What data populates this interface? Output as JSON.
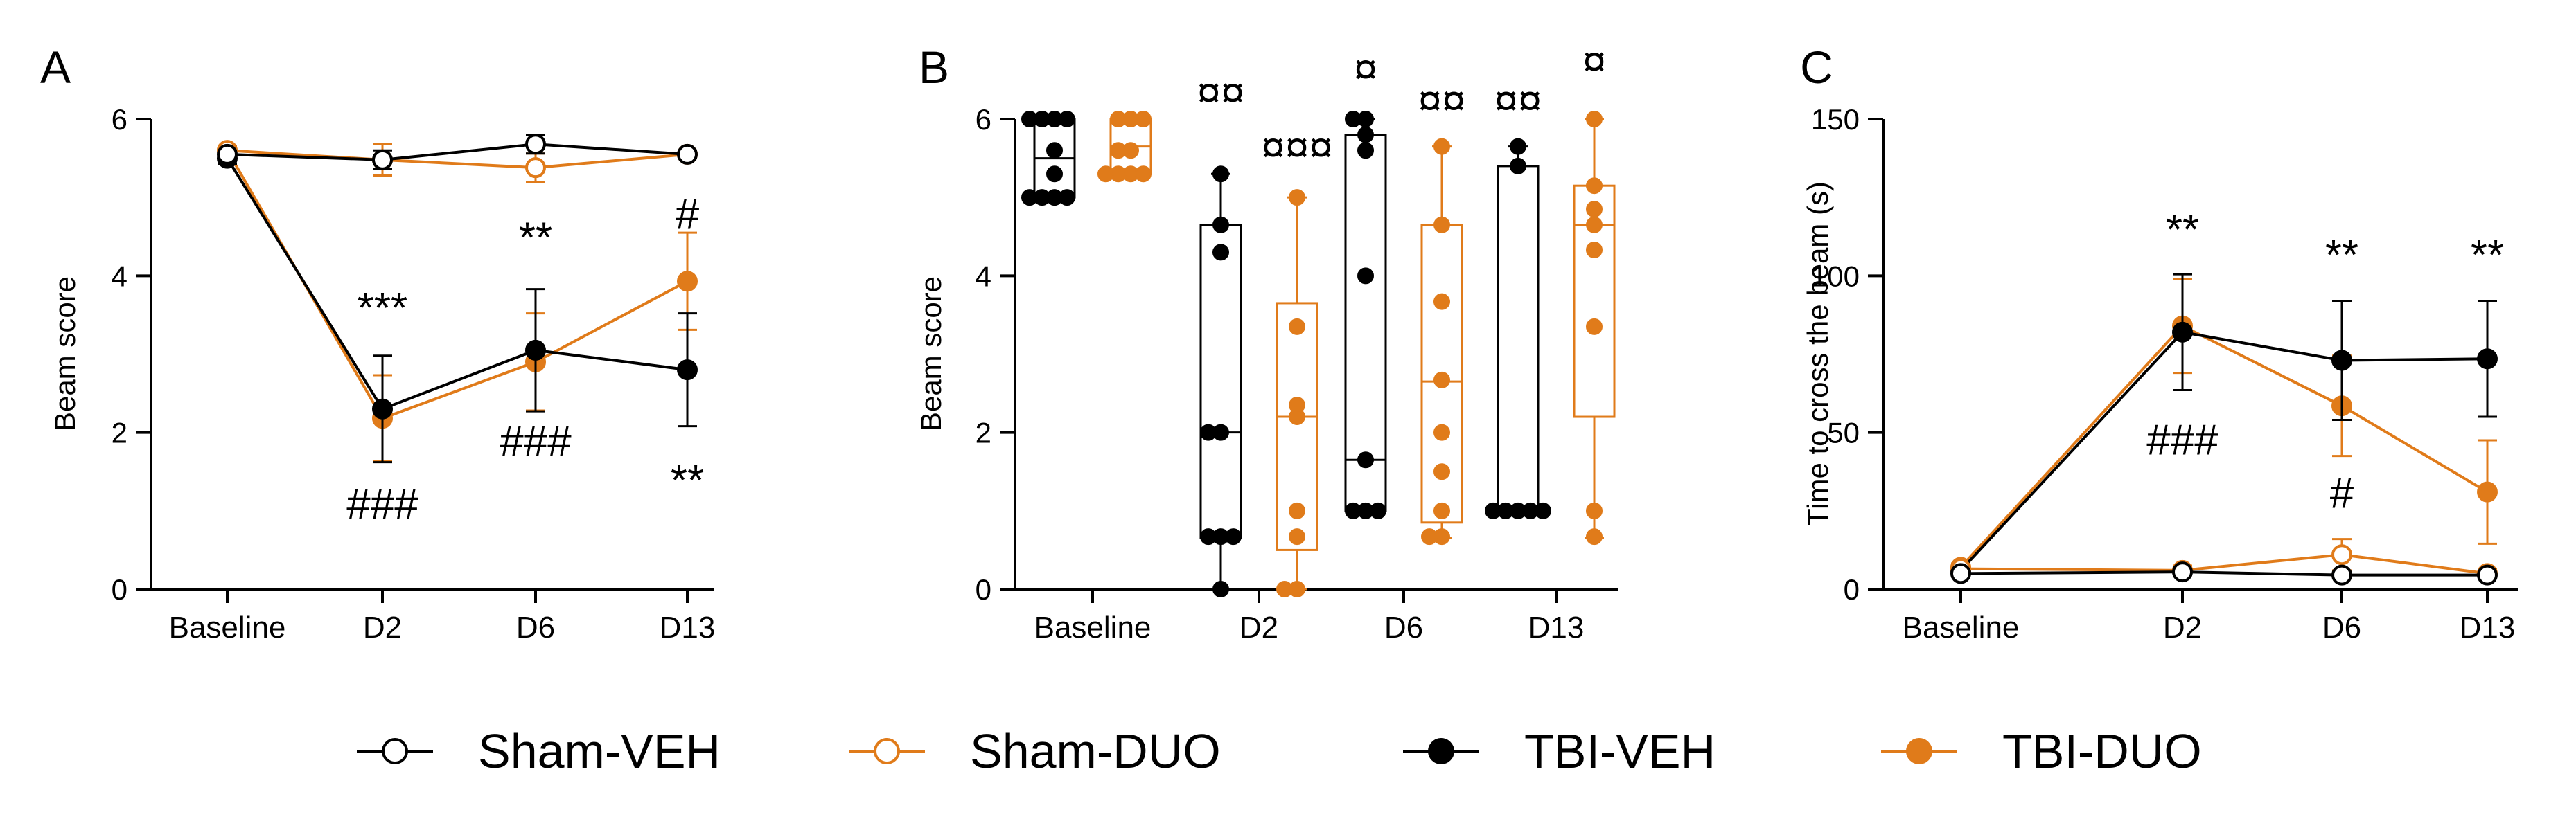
{
  "colors": {
    "black": "#000000",
    "orange": "#E07B1A"
  },
  "legend": [
    {
      "name": "Sham-VEH",
      "color": "#000000",
      "filled": false
    },
    {
      "name": "Sham-DUO",
      "color": "#E07B1A",
      "filled": false
    },
    {
      "name": "TBI-VEH",
      "color": "#000000",
      "filled": true
    },
    {
      "name": "TBI-DUO",
      "color": "#E07B1A",
      "filled": true
    }
  ],
  "chart_data": [
    {
      "panel": "A",
      "type": "line",
      "ylabel": "Beam score",
      "xlabel": "",
      "categories": [
        "Baseline",
        "D2",
        "D6",
        "D13"
      ],
      "ylim": [
        0,
        6
      ],
      "yticks": [
        0,
        2,
        4,
        6
      ],
      "series": [
        {
          "name": "Sham-VEH",
          "values": [
            5.55,
            5.48,
            5.68,
            5.55
          ],
          "err": [
            0.05,
            0.12,
            0.12,
            0.05
          ]
        },
        {
          "name": "Sham-DUO",
          "values": [
            5.6,
            5.48,
            5.38,
            5.55
          ],
          "err": [
            0.05,
            0.2,
            0.18,
            0.05
          ]
        },
        {
          "name": "TBI-VEH",
          "values": [
            5.5,
            2.3,
            3.05,
            2.8
          ],
          "err": [
            0.07,
            0.68,
            0.78,
            0.72
          ]
        },
        {
          "name": "TBI-DUO",
          "values": [
            5.6,
            2.18,
            2.9,
            3.93
          ],
          "err": [
            0.06,
            0.55,
            0.62,
            0.62
          ]
        }
      ],
      "annotations": [
        {
          "text": "***",
          "x": "D2",
          "y": 3.4
        },
        {
          "text": "###",
          "x": "D2",
          "y": 0.9
        },
        {
          "text": "**",
          "x": "D6",
          "y": 4.3
        },
        {
          "text": "###",
          "x": "D6",
          "y": 1.7
        },
        {
          "text": "#",
          "x": "D13",
          "y": 4.6
        },
        {
          "text": "**",
          "x": "D13",
          "y": 1.2
        }
      ]
    },
    {
      "panel": "B",
      "type": "box",
      "ylabel": "Beam score",
      "xlabel": "",
      "categories": [
        "Baseline",
        "D2",
        "D6",
        "D13"
      ],
      "ylim": [
        0,
        6
      ],
      "yticks": [
        0,
        2,
        4,
        6
      ],
      "boxes": [
        {
          "group": "Baseline",
          "series": "TBI-VEH",
          "min": 5,
          "q1": 5,
          "median": 5.5,
          "q3": 6,
          "max": 6,
          "points": [
            5,
            5,
            5,
            5,
            6,
            6,
            6,
            6,
            5.6,
            5.3
          ]
        },
        {
          "group": "Baseline",
          "series": "TBI-DUO",
          "min": 5.3,
          "q1": 5.3,
          "median": 5.65,
          "q3": 6,
          "max": 6,
          "points": [
            5.3,
            5.3,
            5.3,
            5.6,
            5.6,
            6,
            6,
            6,
            5.3
          ]
        },
        {
          "group": "D2",
          "series": "TBI-VEH",
          "min": 0,
          "q1": 0.65,
          "median": 2,
          "q3": 4.65,
          "max": 5.3,
          "points": [
            0,
            0.67,
            0.67,
            0.67,
            2,
            2,
            4.3,
            4.65,
            5.3
          ]
        },
        {
          "group": "D2",
          "series": "TBI-DUO",
          "min": 0,
          "q1": 0.5,
          "median": 2.2,
          "q3": 3.65,
          "max": 5,
          "points": [
            0,
            0,
            0.67,
            1,
            2.2,
            2.35,
            3.35,
            5
          ]
        },
        {
          "group": "D6",
          "series": "TBI-VEH",
          "min": 1,
          "q1": 1,
          "median": 1.65,
          "q3": 5.8,
          "max": 6,
          "points": [
            1,
            1,
            1,
            1.65,
            4,
            5.6,
            5.8,
            6,
            6
          ]
        },
        {
          "group": "D6",
          "series": "TBI-DUO",
          "min": 0.65,
          "q1": 0.85,
          "median": 2.65,
          "q3": 4.65,
          "max": 5.65,
          "points": [
            0.67,
            0.67,
            1,
            2,
            2.67,
            3.67,
            4.65,
            5.65,
            1.5
          ]
        },
        {
          "group": "D13",
          "series": "TBI-VEH",
          "min": 1,
          "q1": 1,
          "median": 1,
          "q3": 5.4,
          "max": 5.65,
          "points": [
            1,
            1,
            1,
            1,
            1,
            5.4,
            5.65
          ]
        },
        {
          "group": "D13",
          "series": "TBI-DUO",
          "min": 0.65,
          "q1": 2.2,
          "median": 4.65,
          "q3": 5.15,
          "max": 6,
          "points": [
            0.67,
            1,
            3.35,
            4.65,
            4.85,
            5.15,
            6,
            4.33
          ]
        }
      ],
      "annotations": [
        {
          "text": "¤¤",
          "x": "D2",
          "series": "TBI-VEH",
          "y": 6.15
        },
        {
          "text": "¤¤¤",
          "x": "D2",
          "series": "TBI-DUO",
          "y": 5.45
        },
        {
          "text": "¤",
          "x": "D6",
          "series": "TBI-VEH",
          "y": 6.45
        },
        {
          "text": "¤¤",
          "x": "D6",
          "series": "TBI-DUO",
          "y": 6.05
        },
        {
          "text": "¤¤",
          "x": "D13",
          "series": "TBI-VEH",
          "y": 6.05
        },
        {
          "text": "¤",
          "x": "D13",
          "series": "TBI-DUO",
          "y": 6.55
        }
      ]
    },
    {
      "panel": "C",
      "type": "line",
      "ylabel": "Time to cross the beam (s)",
      "xlabel": "",
      "categories": [
        "Baseline",
        "D2",
        "D6",
        "D13"
      ],
      "ylim": [
        0,
        150
      ],
      "yticks": [
        0,
        50,
        100,
        150
      ],
      "series": [
        {
          "name": "Sham-VEH",
          "values": [
            5,
            5.5,
            4.5,
            4.5
          ],
          "err": [
            1,
            1,
            1,
            1
          ]
        },
        {
          "name": "Sham-DUO",
          "values": [
            6.5,
            6,
            11,
            5
          ],
          "err": [
            1.5,
            1.5,
            5,
            1.5
          ]
        },
        {
          "name": "TBI-VEH",
          "values": [
            6,
            82,
            73,
            73.5
          ],
          "err": [
            1,
            18.5,
            19,
            18.5
          ]
        },
        {
          "name": "TBI-DUO",
          "values": [
            7,
            84,
            58.5,
            31
          ],
          "err": [
            1.2,
            15,
            16,
            16.5
          ]
        }
      ],
      "annotations": [
        {
          "text": "**",
          "x": "D2",
          "y": 110
        },
        {
          "text": "###",
          "x": "D2",
          "y": 43
        },
        {
          "text": "**",
          "x": "D6",
          "y": 102
        },
        {
          "text": "#",
          "x": "D6",
          "y": 26
        },
        {
          "text": "**",
          "x": "D13",
          "y": 102
        }
      ]
    }
  ],
  "panel_labels": [
    "A",
    "B",
    "C"
  ]
}
